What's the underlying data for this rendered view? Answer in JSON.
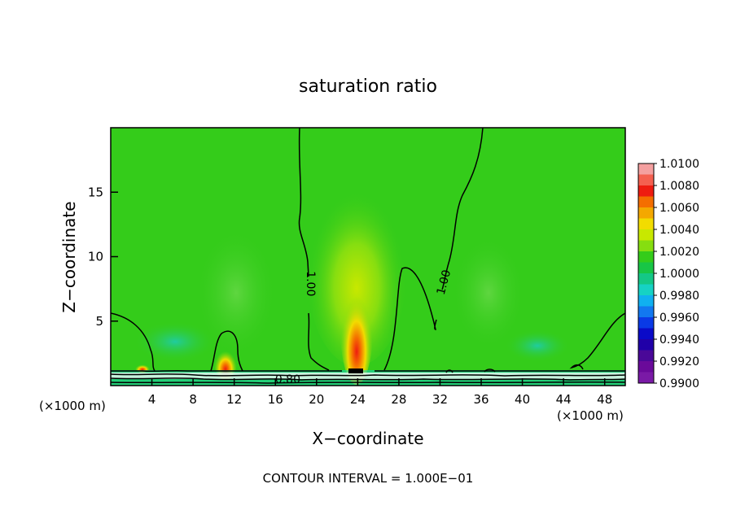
{
  "chart_data": {
    "type": "heatmap",
    "title": "saturation ratio",
    "xlabel": "X−coordinate",
    "ylabel": "Z−coordinate",
    "x_unit_left": "(×1000 m)",
    "x_unit_right": "(×1000 m)",
    "xlim": [
      0,
      50
    ],
    "ylim": [
      0,
      20
    ],
    "x_ticks": [
      {
        "v": 4,
        "label": "4"
      },
      {
        "v": 8,
        "label": "8"
      },
      {
        "v": 12,
        "label": "12"
      },
      {
        "v": 16,
        "label": "16"
      },
      {
        "v": 20,
        "label": "20"
      },
      {
        "v": 24,
        "label": "24"
      },
      {
        "v": 28,
        "label": "28"
      },
      {
        "v": 32,
        "label": "32"
      },
      {
        "v": 36,
        "label": "36"
      },
      {
        "v": 40,
        "label": "40"
      },
      {
        "v": 44,
        "label": "44"
      },
      {
        "v": 48,
        "label": "48"
      }
    ],
    "y_ticks": [
      {
        "v": 5,
        "label": "5"
      },
      {
        "v": 10,
        "label": "10"
      },
      {
        "v": 15,
        "label": "15"
      }
    ],
    "contour_labels": [
      {
        "text": "1.00",
        "x": 19.4,
        "y": 7.9,
        "rotate": 90
      },
      {
        "text": "1.00",
        "x": 32.4,
        "y": 8.0,
        "rotate": -75
      },
      {
        "text": "0.80",
        "x": 17.2,
        "y": 0.45,
        "rotate": 0
      }
    ],
    "colorbar": {
      "levels": [
        "1.0100",
        "1.0080",
        "1.0060",
        "1.0040",
        "1.0020",
        "1.0000",
        "0.9980",
        "0.9960",
        "0.9940",
        "0.9920",
        "0.9900"
      ],
      "colors": [
        "#f4a0a0",
        "#f46050",
        "#ee1c10",
        "#f46e00",
        "#f4a800",
        "#f2dc00",
        "#c8e800",
        "#86de10",
        "#34cc1a",
        "#18c646",
        "#14c886",
        "#16d2c4",
        "#10b0f0",
        "#1278f0",
        "#0a3ae6",
        "#0a0ac8",
        "#2000a8",
        "#4a0898",
        "#6a0a9a",
        "#7a1aa6"
      ]
    },
    "footer": "CONTOUR INTERVAL = 1.000E−01",
    "grid": false
  }
}
